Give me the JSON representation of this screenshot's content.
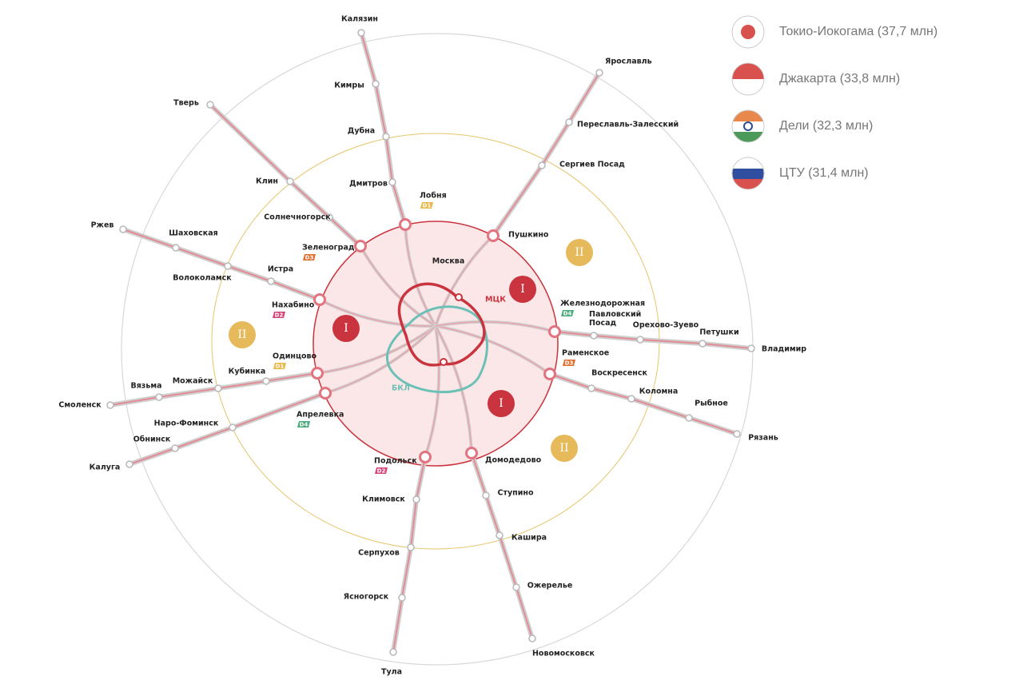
{
  "legend": [
    {
      "label": "Токио-Иокогама (37,7 млн)"
    },
    {
      "label": "Джакарта (33,8 млн)"
    },
    {
      "label": "Дели (32,3 млн)"
    },
    {
      "label": "ЦТУ (31,4 млн)"
    }
  ],
  "center": {
    "city": "Москва",
    "mck": "МЦК",
    "bkl": "БКЛ"
  },
  "zones": [
    "I",
    "I",
    "I",
    "II",
    "II",
    "II"
  ],
  "stations": [
    {
      "name": "Калязин"
    },
    {
      "name": "Кимры"
    },
    {
      "name": "Дубна"
    },
    {
      "name": "Дмитров"
    },
    {
      "name": "Лобня",
      "badge": {
        "text": "D1",
        "color": "#e8b84b"
      }
    },
    {
      "name": "Ярославль"
    },
    {
      "name": "Переславль-Залесский"
    },
    {
      "name": "Сергиев Посад"
    },
    {
      "name": "Пушкино"
    },
    {
      "name": "Тверь"
    },
    {
      "name": "Клин"
    },
    {
      "name": "Солнечногорск"
    },
    {
      "name": "Зеленоград",
      "badge": {
        "text": "D3",
        "color": "#e0702f"
      }
    },
    {
      "name": "Ржев"
    },
    {
      "name": "Шаховская"
    },
    {
      "name": "Волоколамск"
    },
    {
      "name": "Истра"
    },
    {
      "name": "Нахабино",
      "badge": {
        "text": "D2",
        "color": "#d6457a"
      }
    },
    {
      "name": "Смоленск"
    },
    {
      "name": "Вязьма"
    },
    {
      "name": "Можайск"
    },
    {
      "name": "Кубинка"
    },
    {
      "name": "Одинцово",
      "badge": {
        "text": "D1",
        "color": "#e8b84b"
      }
    },
    {
      "name": "Калуга"
    },
    {
      "name": "Обнинск"
    },
    {
      "name": "Наро-Фоминск"
    },
    {
      "name": "Апрелевка",
      "badge": {
        "text": "D4",
        "color": "#4eab7c"
      }
    },
    {
      "name": "Тула"
    },
    {
      "name": "Ясногорск"
    },
    {
      "name": "Серпухов"
    },
    {
      "name": "Климовск"
    },
    {
      "name": "Подольск",
      "badge": {
        "text": "D2",
        "color": "#d6457a"
      }
    },
    {
      "name": "Новомосковск"
    },
    {
      "name": "Ожерелье"
    },
    {
      "name": "Кашира"
    },
    {
      "name": "Ступино"
    },
    {
      "name": "Домодедово"
    },
    {
      "name": "Рязань"
    },
    {
      "name": "Рыбное"
    },
    {
      "name": "Коломна"
    },
    {
      "name": "Воскресенск"
    },
    {
      "name": "Раменское",
      "badge": {
        "text": "D3",
        "color": "#e0702f"
      }
    },
    {
      "name": "Владимир"
    },
    {
      "name": "Петушки"
    },
    {
      "name": "Орехово-Зуево"
    },
    {
      "name": "Павловский Посад"
    },
    {
      "name": "Железнодорожная",
      "badge": {
        "text": "D4",
        "color": "#4eab7c"
      }
    }
  ]
}
